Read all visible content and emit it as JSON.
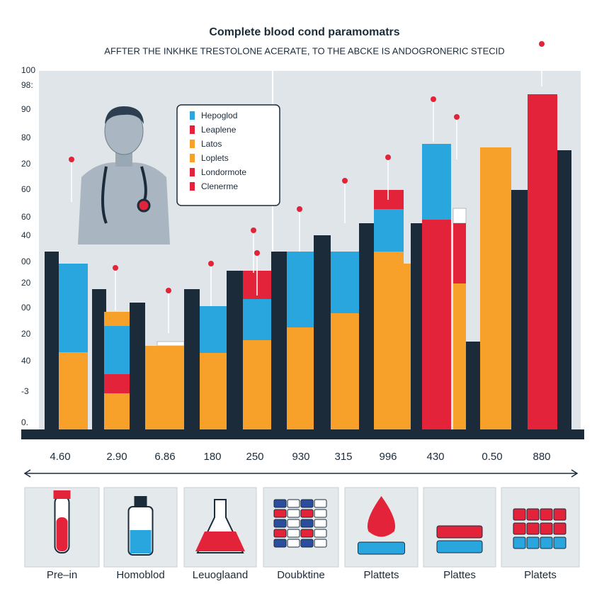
{
  "header": {
    "title": "Complete blood cond paramomatrs",
    "subtitle": "AFFTER THE INKHKE TRESTOLONE ACERATE, TO THE ABCKE IS ANDOGRONERIC STECID"
  },
  "y_axis_labels": [
    "100",
    "98:",
    "90",
    "80",
    "20",
    "60",
    "60",
    "40",
    "00",
    "20",
    "00",
    "20",
    "40",
    "-3",
    "0."
  ],
  "x_labels": [
    "4.60",
    "2.90",
    "6.86",
    "180",
    "250",
    "930",
    "315",
    "996",
    "430",
    "0.50",
    "880"
  ],
  "legend": [
    "Hepoglod",
    "Leaplene",
    "Latos",
    "Loplets",
    "Londormote",
    "Clenerme"
  ],
  "cards": [
    "Pre–in",
    "Homoblod",
    "Leuoglaand",
    "Doubktine",
    "Plattets",
    "Plattes",
    "Platets"
  ]
}
